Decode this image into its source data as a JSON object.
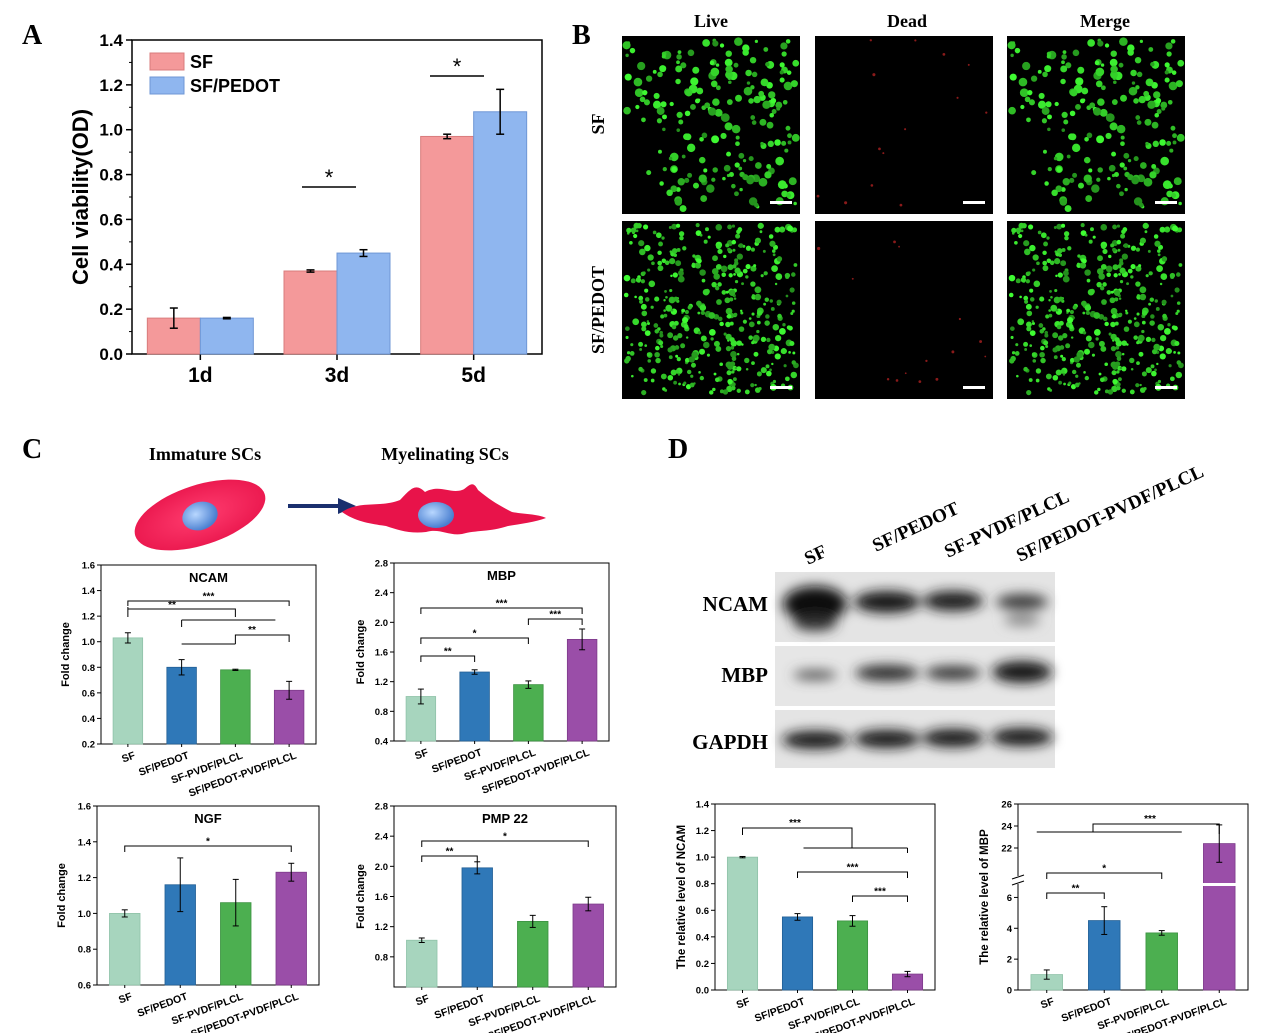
{
  "panel_letters": {
    "a": "A",
    "b": "B",
    "c": "C",
    "d": "D"
  },
  "panel_b": {
    "columns": [
      "Live",
      "Dead",
      "Merge"
    ],
    "rows": [
      "SF",
      "SF/PEDOT"
    ]
  },
  "panel_c_schematic": {
    "left": "Immature  SCs",
    "right": "Myelinating SCs"
  },
  "panel_d_blot": {
    "lanes": [
      "SF",
      "SF/PEDOT",
      "SF-PVDF/PLCL",
      "SF/PEDOT-PVDF/PLCL"
    ],
    "bands": [
      "NCAM",
      "MBP",
      "GAPDH"
    ]
  },
  "colors": {
    "sf_red": "#f4999a",
    "sf_pedot_blue": "#8fb6ef",
    "c_green": "#a7d5be",
    "c_blue": "#2f78b8",
    "c_lgreen": "#4caf50",
    "c_purple": "#9a4ea8",
    "fluor_green": "#30dd30"
  },
  "chart_data": [
    {
      "id": "A",
      "type": "bar",
      "categories": [
        "1d",
        "3d",
        "5d"
      ],
      "series": [
        {
          "name": "SF",
          "values": [
            0.16,
            0.37,
            0.97
          ],
          "err": [
            0.045,
            0.005,
            0.01
          ]
        },
        {
          "name": "SF/PEDOT",
          "values": [
            0.16,
            0.45,
            1.08
          ],
          "err": [
            0.003,
            0.015,
            0.1
          ]
        }
      ],
      "ylabel": "Cell viability(OD)",
      "ylim": [
        0,
        1.4
      ],
      "yticks": [
        "0.0",
        "0.2",
        "0.4",
        "0.6",
        "0.8",
        "1.0",
        "1.2",
        "1.4"
      ],
      "legend": "top-left",
      "sig": [
        "*",
        "*"
      ]
    },
    {
      "id": "NCAM",
      "type": "bar",
      "title": "NCAM",
      "ylabel": "Fold change",
      "ylim": [
        0.2,
        1.6
      ],
      "yticks": [
        "0.2",
        "0.4",
        "0.6",
        "0.8",
        "1.0",
        "1.2",
        "1.4",
        "1.6"
      ],
      "categories": [
        "SF",
        "SF/PEDOT",
        "SF-PVDF/PLCL",
        "SF/PEDOT-PVDF/PLCL"
      ],
      "values": [
        1.03,
        0.8,
        0.78,
        0.62
      ],
      "err": [
        0.04,
        0.06,
        0.005,
        0.07
      ],
      "sig": [
        "***",
        "**",
        "**"
      ]
    },
    {
      "id": "MBP",
      "type": "bar",
      "title": "MBP",
      "ylabel": "Fold change",
      "ylim": [
        0.4,
        2.8
      ],
      "yticks": [
        "0.4",
        "0.8",
        "1.2",
        "1.6",
        "2.0",
        "2.4",
        "2.8"
      ],
      "categories": [
        "SF",
        "SF/PEDOT",
        "SF-PVDF/PLCL",
        "SF/PEDOT-PVDF/PLCL"
      ],
      "values": [
        1.0,
        1.33,
        1.16,
        1.77
      ],
      "err": [
        0.1,
        0.03,
        0.05,
        0.14
      ],
      "sig": [
        "***",
        "***",
        "*",
        "**"
      ]
    },
    {
      "id": "NGF",
      "type": "bar",
      "title": "NGF",
      "ylabel": "Fold change",
      "ylim": [
        0.6,
        1.6
      ],
      "yticks": [
        "0.6",
        "0.8",
        "1.0",
        "1.2",
        "1.4",
        "1.6"
      ],
      "categories": [
        "SF",
        "SF/PEDOT",
        "SF-PVDF/PLCL",
        "SF/PEDOT-PVDF/PLCL"
      ],
      "values": [
        1.0,
        1.16,
        1.06,
        1.23
      ],
      "err": [
        0.02,
        0.15,
        0.13,
        0.05
      ],
      "sig": [
        "*"
      ]
    },
    {
      "id": "PMP22",
      "type": "bar",
      "title": "PMP 22",
      "ylabel": "Fold change",
      "ylim": [
        0.4,
        2.8
      ],
      "yticks": [
        "0.8",
        "1.2",
        "1.6",
        "2.0",
        "2.4",
        "2.8"
      ],
      "categories": [
        "SF",
        "SF/PEDOT",
        "SF-PVDF/PLCL",
        "SF/PEDOT-PVDF/PLCL"
      ],
      "values": [
        1.02,
        1.98,
        1.27,
        1.5
      ],
      "err": [
        0.03,
        0.08,
        0.08,
        0.09
      ],
      "sig": [
        "*",
        "**"
      ]
    },
    {
      "id": "relNCAM",
      "type": "bar",
      "ylabel": "The relative level of NCAM",
      "ylim": [
        0,
        1.4
      ],
      "yticks": [
        "0.0",
        "0.2",
        "0.4",
        "0.6",
        "0.8",
        "1.0",
        "1.2",
        "1.4"
      ],
      "categories": [
        "SF",
        "SF/PEDOT",
        "SF-PVDF/PLCL",
        "SF/PEDOT-PVDF/PLCL"
      ],
      "values": [
        1.0,
        0.55,
        0.52,
        0.12
      ],
      "err": [
        0.005,
        0.025,
        0.04,
        0.02
      ],
      "sig": [
        "***",
        "***",
        "***"
      ]
    },
    {
      "id": "relMBP",
      "type": "bar",
      "ylabel": "The relative level of MBP",
      "ylim": [
        0,
        26
      ],
      "broken_axis": true,
      "yticks": [
        "0",
        "2",
        "4",
        "6",
        "22",
        "24",
        "26"
      ],
      "categories": [
        "SF",
        "SF/PEDOT",
        "SF-PVDF/PLCL",
        "SF/PEDOT-PVDF/PLCL"
      ],
      "values": [
        1.0,
        4.5,
        3.7,
        22.4
      ],
      "err": [
        0.3,
        0.9,
        0.15,
        1.7
      ],
      "sig": [
        "***",
        "*",
        "**"
      ]
    }
  ]
}
